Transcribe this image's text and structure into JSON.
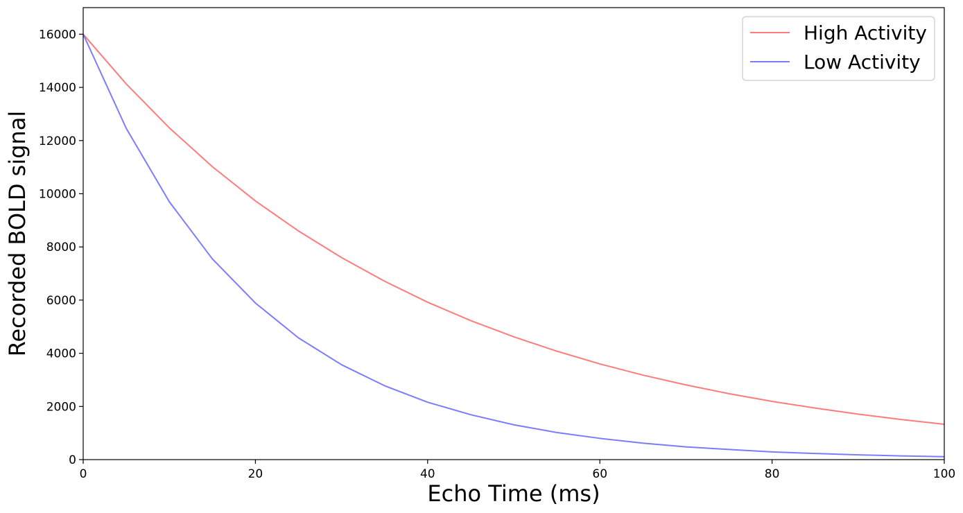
{
  "chart_data": {
    "type": "line",
    "title": "",
    "xlabel": "Echo Time (ms)",
    "ylabel": "Recorded BOLD signal",
    "xlim": [
      0,
      100
    ],
    "ylim": [
      0,
      17000
    ],
    "xticks": [
      0,
      20,
      40,
      60,
      80,
      100
    ],
    "yticks": [
      0,
      2000,
      4000,
      6000,
      8000,
      10000,
      12000,
      14000,
      16000
    ],
    "grid": false,
    "legend_position": "top-right",
    "series": [
      {
        "name": "High Activity",
        "color": "#ff7b7b",
        "x": [
          0,
          5,
          10,
          15,
          20,
          25,
          30,
          35,
          40,
          45,
          50,
          55,
          60,
          65,
          70,
          75,
          80,
          85,
          90,
          95,
          100
        ],
        "y": [
          16000,
          14130,
          12480,
          11020,
          9730,
          8600,
          7600,
          6710,
          5920,
          5230,
          4620,
          4080,
          3600,
          3180,
          2810,
          2480,
          2190,
          1940,
          1710,
          1510,
          1330
        ]
      },
      {
        "name": "Low Activity",
        "color": "#7b7bff",
        "x": [
          0,
          5,
          10,
          15,
          20,
          25,
          30,
          35,
          40,
          45,
          50,
          55,
          60,
          65,
          70,
          75,
          80,
          85,
          90,
          95,
          100
        ],
        "y": [
          16000,
          12460,
          9700,
          7550,
          5890,
          4580,
          3570,
          2780,
          2160,
          1690,
          1310,
          1020,
          800,
          620,
          480,
          380,
          290,
          230,
          180,
          140,
          110
        ]
      }
    ]
  }
}
